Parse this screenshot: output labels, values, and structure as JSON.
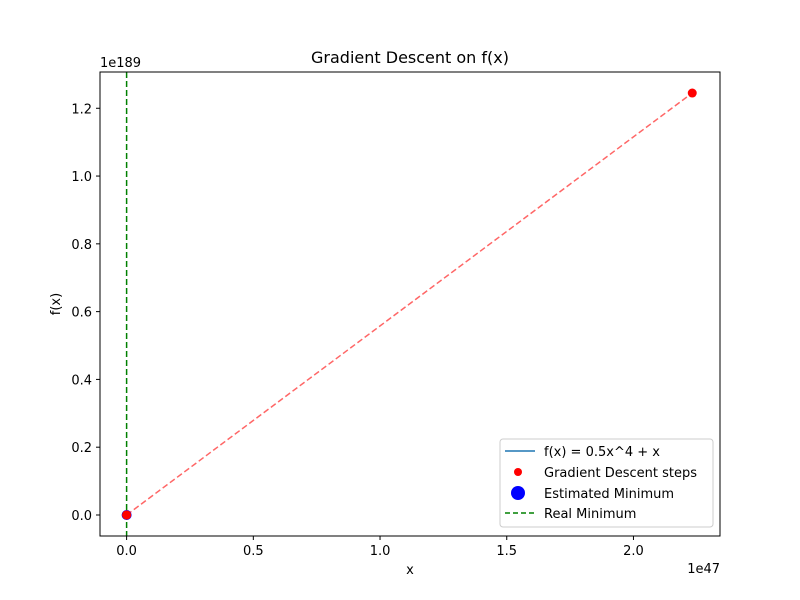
{
  "chart_data": {
    "type": "line",
    "title": "Gradient Descent on f(x)",
    "xlabel": "x",
    "ylabel": "f(x)",
    "x_offset_label": "1e47",
    "y_offset_label": "1e189",
    "xlim": [
      -0.105,
      2.3415
    ],
    "ylim": [
      -0.062,
      1.307
    ],
    "x_ticks": [
      0.0,
      0.5,
      1.0,
      1.5,
      2.0
    ],
    "x_tick_labels": [
      "0.0",
      "0.5",
      "1.0",
      "1.5",
      "2.0"
    ],
    "y_ticks": [
      0.0,
      0.2,
      0.4,
      0.6,
      0.8,
      1.0,
      1.2
    ],
    "y_tick_labels": [
      "0.0",
      "0.2",
      "0.4",
      "0.6",
      "0.8",
      "1.0",
      "1.2"
    ],
    "grid": false,
    "legend_position": "lower-right",
    "series": [
      {
        "name": "f(x) = 0.5x^4 + x",
        "kind": "line",
        "color": "#1f77b4",
        "x": [
          0,
          0
        ],
        "y": [
          0,
          0
        ]
      },
      {
        "name": "Gradient Descent steps",
        "kind": "scatter",
        "color": "#ff0000",
        "x": [
          0,
          0,
          2.232
        ],
        "y": [
          0,
          0,
          1.245
        ]
      },
      {
        "name": "Estimated Minimum",
        "kind": "scatter-large",
        "color": "#0000ff",
        "x": [
          0
        ],
        "y": [
          0
        ]
      },
      {
        "name": "Real Minimum",
        "kind": "vline-dashed",
        "color": "#008000",
        "x": [
          0
        ]
      }
    ],
    "descent_path": {
      "color": "#ff0000",
      "opacity": 0.6,
      "x": [
        0,
        2.232
      ],
      "y": [
        0,
        1.245
      ]
    }
  }
}
